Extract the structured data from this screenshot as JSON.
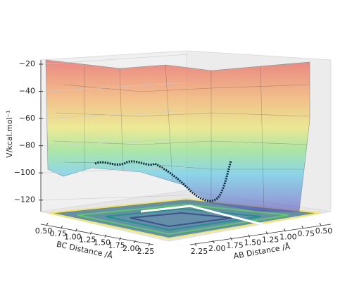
{
  "chart_data": {
    "type": "surface3d",
    "xlabel": "BC Distance /Å",
    "ylabel": "AB Distance /Å",
    "zlabel": "V/kcal.mol⁻¹",
    "xlim": [
      0.5,
      2.25
    ],
    "xticks": [
      {
        "value": 0.5,
        "label": "0.50"
      },
      {
        "value": 0.75,
        "label": "0.75"
      },
      {
        "value": 1.0,
        "label": "1.00"
      },
      {
        "value": 1.25,
        "label": "1.25"
      },
      {
        "value": 1.5,
        "label": "1.50"
      },
      {
        "value": 1.75,
        "label": "1.75"
      },
      {
        "value": 2.0,
        "label": "2.00"
      },
      {
        "value": 2.25,
        "label": "2.25"
      }
    ],
    "ylim": [
      0.5,
      2.25
    ],
    "yticks": [
      {
        "value": 2.25,
        "label": "2.25"
      },
      {
        "value": 2.0,
        "label": "2.00"
      },
      {
        "value": 1.75,
        "label": "1.75"
      },
      {
        "value": 1.5,
        "label": "1.50"
      },
      {
        "value": 1.25,
        "label": "1.25"
      },
      {
        "value": 1.0,
        "label": "1.00"
      },
      {
        "value": 0.75,
        "label": "0.75"
      },
      {
        "value": 0.5,
        "label": "0.50"
      }
    ],
    "zlim": [
      -130,
      -20
    ],
    "zticks": [
      {
        "value": -20,
        "label": "−20"
      },
      {
        "value": -40,
        "label": "−40"
      },
      {
        "value": -60,
        "label": "−60"
      },
      {
        "value": -80,
        "label": "−80"
      },
      {
        "value": -100,
        "label": "−100"
      },
      {
        "value": -120,
        "label": "−120"
      }
    ]
  }
}
